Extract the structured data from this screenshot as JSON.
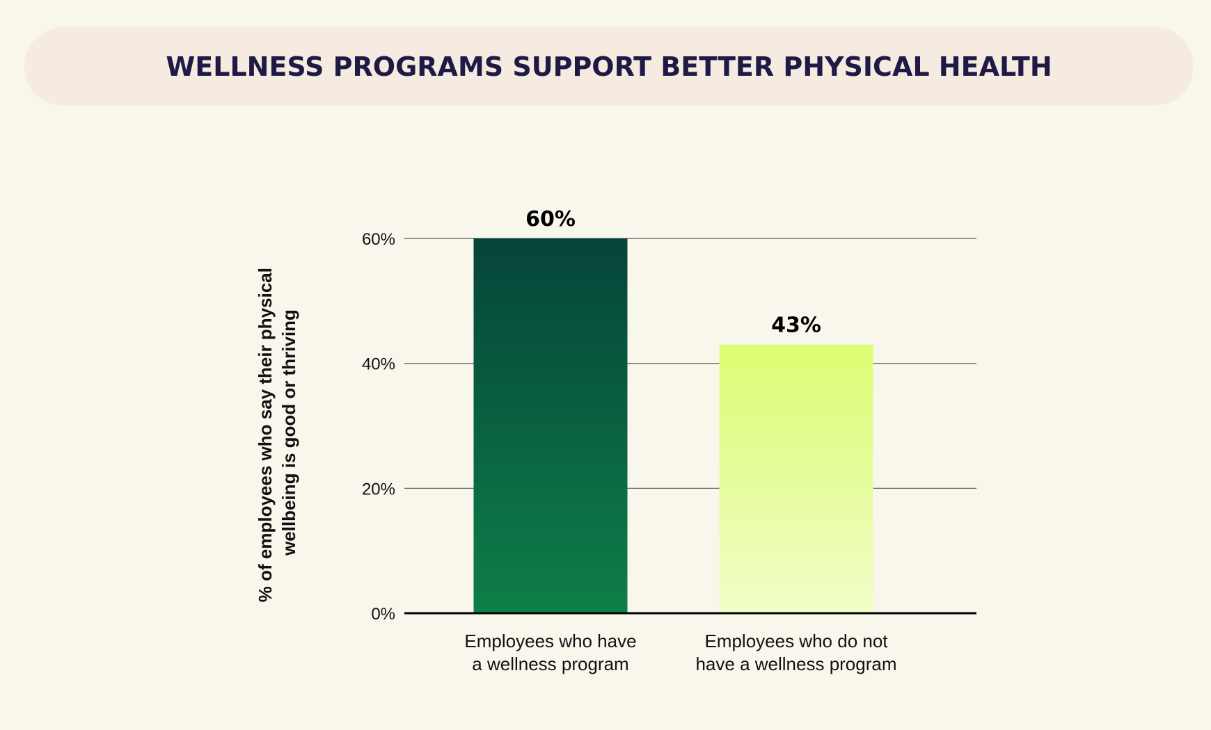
{
  "chart_data": {
    "type": "bar",
    "title": "WELLNESS PROGRAMS SUPPORT BETTER PHYSICAL HEALTH",
    "ylabel": [
      "% of employees who say their physical",
      "wellbeing is good or thriving"
    ],
    "xlabel": "",
    "categories": [
      [
        "Employees who have",
        "a wellness program"
      ],
      [
        "Employees who do not",
        "have a wellness program"
      ]
    ],
    "values": [
      60,
      43
    ],
    "data_labels": [
      "60%",
      "43%"
    ],
    "ylim": [
      0,
      60
    ],
    "yticks": [
      0,
      20,
      40,
      60
    ],
    "ytick_labels": [
      "0%",
      "20%",
      "40%",
      "60%"
    ],
    "grid": true,
    "legend": "none",
    "colors": {
      "background": "#f9f7ec",
      "title_bg": "#f5ebe0",
      "title_text": "#1e1a45",
      "bar1_top": "#05443a",
      "bar1_bottom": "#0e7f48",
      "bar2_top": "#dcfd72",
      "bar2_bottom": "#f0fdc8"
    }
  }
}
